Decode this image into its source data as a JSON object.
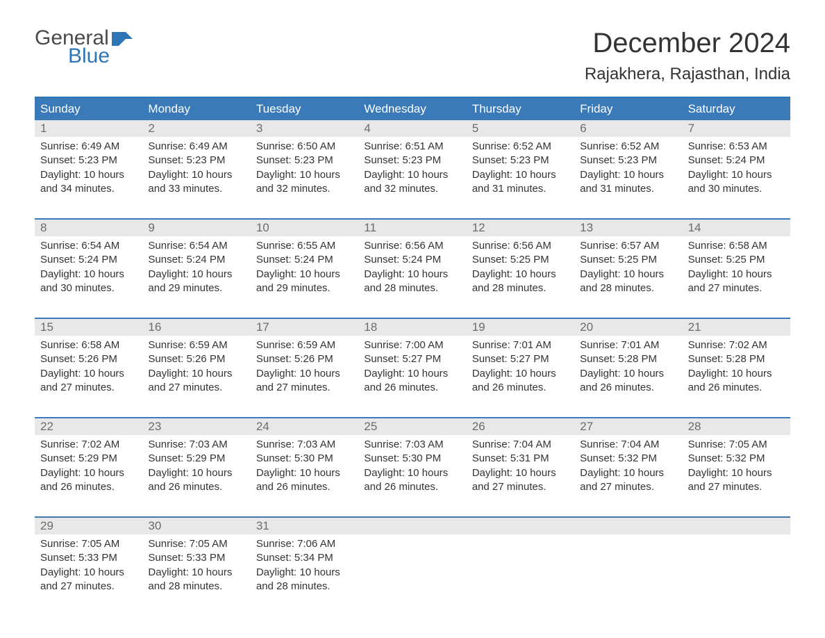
{
  "logo": {
    "text1": "General",
    "text2": "Blue",
    "flag_color": "#2e75b6",
    "text1_color": "#4a4a4a"
  },
  "title": "December 2024",
  "location": "Rajakhera, Rajasthan, India",
  "colors": {
    "header_bg": "#3a7ab8",
    "header_text": "#ffffff",
    "week_border": "#3a7ab8",
    "daynum_bg": "#e8e8e8",
    "daynum_text": "#6b6b6b",
    "body_text": "#333333",
    "background": "#ffffff"
  },
  "typography": {
    "title_fontsize": 40,
    "location_fontsize": 24,
    "weekday_fontsize": 17,
    "daynum_fontsize": 17,
    "cell_fontsize": 15
  },
  "weekdays": [
    "Sunday",
    "Monday",
    "Tuesday",
    "Wednesday",
    "Thursday",
    "Friday",
    "Saturday"
  ],
  "weeks": [
    [
      {
        "n": "1",
        "sunrise": "6:49 AM",
        "sunset": "5:23 PM",
        "dl1": "Daylight: 10 hours",
        "dl2": "and 34 minutes."
      },
      {
        "n": "2",
        "sunrise": "6:49 AM",
        "sunset": "5:23 PM",
        "dl1": "Daylight: 10 hours",
        "dl2": "and 33 minutes."
      },
      {
        "n": "3",
        "sunrise": "6:50 AM",
        "sunset": "5:23 PM",
        "dl1": "Daylight: 10 hours",
        "dl2": "and 32 minutes."
      },
      {
        "n": "4",
        "sunrise": "6:51 AM",
        "sunset": "5:23 PM",
        "dl1": "Daylight: 10 hours",
        "dl2": "and 32 minutes."
      },
      {
        "n": "5",
        "sunrise": "6:52 AM",
        "sunset": "5:23 PM",
        "dl1": "Daylight: 10 hours",
        "dl2": "and 31 minutes."
      },
      {
        "n": "6",
        "sunrise": "6:52 AM",
        "sunset": "5:23 PM",
        "dl1": "Daylight: 10 hours",
        "dl2": "and 31 minutes."
      },
      {
        "n": "7",
        "sunrise": "6:53 AM",
        "sunset": "5:24 PM",
        "dl1": "Daylight: 10 hours",
        "dl2": "and 30 minutes."
      }
    ],
    [
      {
        "n": "8",
        "sunrise": "6:54 AM",
        "sunset": "5:24 PM",
        "dl1": "Daylight: 10 hours",
        "dl2": "and 30 minutes."
      },
      {
        "n": "9",
        "sunrise": "6:54 AM",
        "sunset": "5:24 PM",
        "dl1": "Daylight: 10 hours",
        "dl2": "and 29 minutes."
      },
      {
        "n": "10",
        "sunrise": "6:55 AM",
        "sunset": "5:24 PM",
        "dl1": "Daylight: 10 hours",
        "dl2": "and 29 minutes."
      },
      {
        "n": "11",
        "sunrise": "6:56 AM",
        "sunset": "5:24 PM",
        "dl1": "Daylight: 10 hours",
        "dl2": "and 28 minutes."
      },
      {
        "n": "12",
        "sunrise": "6:56 AM",
        "sunset": "5:25 PM",
        "dl1": "Daylight: 10 hours",
        "dl2": "and 28 minutes."
      },
      {
        "n": "13",
        "sunrise": "6:57 AM",
        "sunset": "5:25 PM",
        "dl1": "Daylight: 10 hours",
        "dl2": "and 28 minutes."
      },
      {
        "n": "14",
        "sunrise": "6:58 AM",
        "sunset": "5:25 PM",
        "dl1": "Daylight: 10 hours",
        "dl2": "and 27 minutes."
      }
    ],
    [
      {
        "n": "15",
        "sunrise": "6:58 AM",
        "sunset": "5:26 PM",
        "dl1": "Daylight: 10 hours",
        "dl2": "and 27 minutes."
      },
      {
        "n": "16",
        "sunrise": "6:59 AM",
        "sunset": "5:26 PM",
        "dl1": "Daylight: 10 hours",
        "dl2": "and 27 minutes."
      },
      {
        "n": "17",
        "sunrise": "6:59 AM",
        "sunset": "5:26 PM",
        "dl1": "Daylight: 10 hours",
        "dl2": "and 27 minutes."
      },
      {
        "n": "18",
        "sunrise": "7:00 AM",
        "sunset": "5:27 PM",
        "dl1": "Daylight: 10 hours",
        "dl2": "and 26 minutes."
      },
      {
        "n": "19",
        "sunrise": "7:01 AM",
        "sunset": "5:27 PM",
        "dl1": "Daylight: 10 hours",
        "dl2": "and 26 minutes."
      },
      {
        "n": "20",
        "sunrise": "7:01 AM",
        "sunset": "5:28 PM",
        "dl1": "Daylight: 10 hours",
        "dl2": "and 26 minutes."
      },
      {
        "n": "21",
        "sunrise": "7:02 AM",
        "sunset": "5:28 PM",
        "dl1": "Daylight: 10 hours",
        "dl2": "and 26 minutes."
      }
    ],
    [
      {
        "n": "22",
        "sunrise": "7:02 AM",
        "sunset": "5:29 PM",
        "dl1": "Daylight: 10 hours",
        "dl2": "and 26 minutes."
      },
      {
        "n": "23",
        "sunrise": "7:03 AM",
        "sunset": "5:29 PM",
        "dl1": "Daylight: 10 hours",
        "dl2": "and 26 minutes."
      },
      {
        "n": "24",
        "sunrise": "7:03 AM",
        "sunset": "5:30 PM",
        "dl1": "Daylight: 10 hours",
        "dl2": "and 26 minutes."
      },
      {
        "n": "25",
        "sunrise": "7:03 AM",
        "sunset": "5:30 PM",
        "dl1": "Daylight: 10 hours",
        "dl2": "and 26 minutes."
      },
      {
        "n": "26",
        "sunrise": "7:04 AM",
        "sunset": "5:31 PM",
        "dl1": "Daylight: 10 hours",
        "dl2": "and 27 minutes."
      },
      {
        "n": "27",
        "sunrise": "7:04 AM",
        "sunset": "5:32 PM",
        "dl1": "Daylight: 10 hours",
        "dl2": "and 27 minutes."
      },
      {
        "n": "28",
        "sunrise": "7:05 AM",
        "sunset": "5:32 PM",
        "dl1": "Daylight: 10 hours",
        "dl2": "and 27 minutes."
      }
    ],
    [
      {
        "n": "29",
        "sunrise": "7:05 AM",
        "sunset": "5:33 PM",
        "dl1": "Daylight: 10 hours",
        "dl2": "and 27 minutes."
      },
      {
        "n": "30",
        "sunrise": "7:05 AM",
        "sunset": "5:33 PM",
        "dl1": "Daylight: 10 hours",
        "dl2": "and 28 minutes."
      },
      {
        "n": "31",
        "sunrise": "7:06 AM",
        "sunset": "5:34 PM",
        "dl1": "Daylight: 10 hours",
        "dl2": "and 28 minutes."
      },
      null,
      null,
      null,
      null
    ]
  ],
  "labels": {
    "sunrise": "Sunrise: ",
    "sunset": "Sunset: "
  }
}
